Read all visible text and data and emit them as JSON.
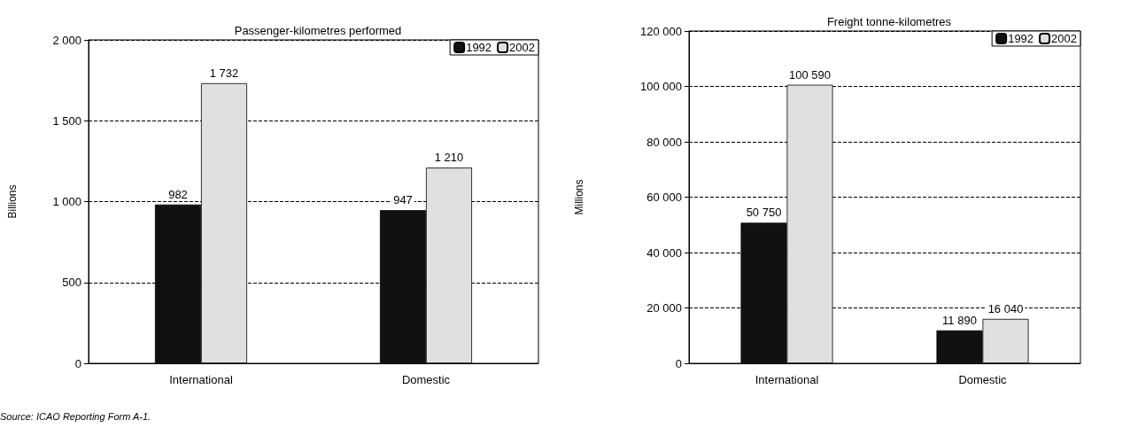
{
  "chart_data": [
    {
      "type": "bar",
      "title": "Passenger-kilometres performed",
      "ylabel": "Billions",
      "categories": [
        "International",
        "Domestic"
      ],
      "series": [
        {
          "name": "1992",
          "color": "#111111",
          "values": [
            982,
            947
          ],
          "value_labels": [
            "982",
            "947"
          ]
        },
        {
          "name": "2002",
          "color": "#e0e0e0",
          "values": [
            1732,
            1210
          ],
          "value_labels": [
            "1 732",
            "1 210"
          ]
        }
      ],
      "ylim": [
        0,
        2000
      ],
      "yticks": [
        {
          "value": 0,
          "label": "0"
        },
        {
          "value": 500,
          "label": "500"
        },
        {
          "value": 1000,
          "label": "1 000"
        },
        {
          "value": 1500,
          "label": "1 500"
        },
        {
          "value": 2000,
          "label": "2 000"
        }
      ],
      "grid": "y",
      "line_style": "dashed",
      "legend": "top right",
      "annotations": [
        "Source: ICAO Reporting Form A-1."
      ]
    },
    {
      "type": "bar",
      "title": "Freight tonne-kilometres",
      "ylabel": "Millions",
      "categories": [
        "International",
        "Domestic"
      ],
      "series": [
        {
          "name": "1992",
          "color": "#111111",
          "values": [
            50750,
            11890
          ],
          "value_labels": [
            "50 750",
            "11 890"
          ]
        },
        {
          "name": "2002",
          "color": "#e0e0e0",
          "values": [
            100590,
            16040
          ],
          "value_labels": [
            "100 590",
            "16 040"
          ]
        }
      ],
      "ylim": [
        0,
        120000
      ],
      "yticks": [
        {
          "value": 0,
          "label": "0"
        },
        {
          "value": 20000,
          "label": "20 000"
        },
        {
          "value": 40000,
          "label": "40 000"
        },
        {
          "value": 60000,
          "label": "60 000"
        },
        {
          "value": 80000,
          "label": "80 000"
        },
        {
          "value": 100000,
          "label": "100 000"
        },
        {
          "value": 120000,
          "label": "120 000"
        }
      ],
      "grid": "y",
      "line_style": "dashed",
      "legend": "top right"
    }
  ]
}
